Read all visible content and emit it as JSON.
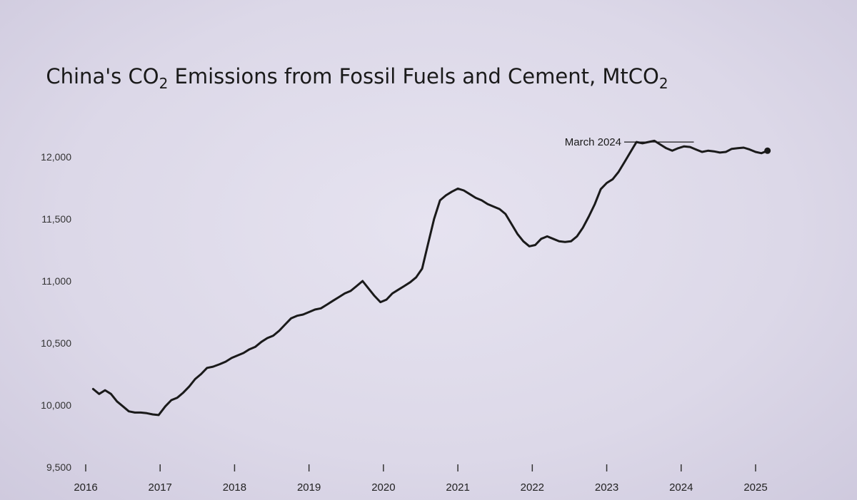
{
  "chart_data": {
    "type": "line",
    "title_parts": [
      {
        "text": "China's CO",
        "sub": false
      },
      {
        "text": "2",
        "sub": true
      },
      {
        "text": " Emissions from Fossil Fuels and Cement, MtCO",
        "sub": false
      },
      {
        "text": "2",
        "sub": true
      }
    ],
    "xlabel": "",
    "ylabel": "",
    "xlim": [
      2016,
      2025.3
    ],
    "ylim": [
      9500,
      12300
    ],
    "y_ticks": [
      9500,
      10000,
      10500,
      11000,
      11500,
      12000
    ],
    "y_tick_labels": [
      "9,500",
      "10,000",
      "10,500",
      "11,000",
      "11,500",
      "12,000"
    ],
    "x_ticks": [
      2016,
      2017,
      2018,
      2019,
      2020,
      2021,
      2022,
      2023,
      2024,
      2025
    ],
    "x_tick_labels": [
      "2016",
      "2017",
      "2018",
      "2019",
      "2020",
      "2021",
      "2022",
      "2023",
      "2024",
      "2025"
    ],
    "grid": false,
    "line_color": "#1a1a1a",
    "annotation": {
      "text": "March 2024",
      "x": 2024.17,
      "y": 12120
    },
    "series": [
      {
        "x": [
          2016.1,
          2016.18,
          2016.26,
          2016.34,
          2016.42,
          2016.5,
          2016.58,
          2016.66,
          2016.74,
          2016.82,
          2016.9,
          2016.98,
          2017.07,
          2017.15,
          2017.23,
          2017.31,
          2017.39,
          2017.47,
          2017.55,
          2017.63,
          2017.71,
          2017.8,
          2017.88,
          2017.96,
          2018.04,
          2018.12,
          2018.2,
          2018.28,
          2018.36,
          2018.44,
          2018.52,
          2018.6,
          2018.68,
          2018.76,
          2018.84,
          2018.92,
          2019.0,
          2019.08,
          2019.16,
          2019.24,
          2019.32,
          2019.4,
          2019.48,
          2019.56,
          2019.64,
          2019.72,
          2019.8,
          2019.88,
          2019.96,
          2020.04,
          2020.12,
          2020.2,
          2020.28,
          2020.36,
          2020.44,
          2020.52,
          2020.6,
          2020.68,
          2020.76,
          2020.84,
          2020.92,
          2021.0,
          2021.08,
          2021.16,
          2021.24,
          2021.32,
          2021.4,
          2021.48,
          2021.56,
          2021.64,
          2021.72,
          2021.8,
          2021.88,
          2021.96,
          2022.04,
          2022.12,
          2022.2,
          2022.28,
          2022.36,
          2022.44,
          2022.52,
          2022.6,
          2022.68,
          2022.76,
          2022.84,
          2022.92,
          2023.0,
          2023.08,
          2023.16,
          2023.24,
          2023.32,
          2023.4,
          2023.48,
          2023.56,
          2023.64,
          2023.72,
          2023.8,
          2023.88,
          2023.96,
          2024.04,
          2024.12,
          2024.2,
          2024.28,
          2024.36,
          2024.44,
          2024.52,
          2024.6,
          2024.68,
          2024.76,
          2024.84,
          2024.92,
          2025.0,
          2025.08,
          2025.16
        ],
        "y": [
          10130,
          10090,
          10120,
          10090,
          10030,
          9990,
          9950,
          9940,
          9940,
          9935,
          9925,
          9920,
          9990,
          10040,
          10060,
          10100,
          10150,
          10210,
          10250,
          10300,
          10310,
          10330,
          10350,
          10380,
          10400,
          10420,
          10450,
          10470,
          10510,
          10540,
          10560,
          10600,
          10650,
          10700,
          10720,
          10730,
          10750,
          10770,
          10780,
          10810,
          10840,
          10870,
          10900,
          10920,
          10960,
          11000,
          10940,
          10880,
          10830,
          10850,
          10900,
          10930,
          10960,
          10990,
          11030,
          11100,
          11300,
          11500,
          11650,
          11690,
          11720,
          11745,
          11730,
          11700,
          11670,
          11650,
          11620,
          11600,
          11580,
          11540,
          11460,
          11380,
          11320,
          11280,
          11290,
          11340,
          11360,
          11340,
          11320,
          11315,
          11320,
          11360,
          11430,
          11520,
          11620,
          11740,
          11790,
          11820,
          11880,
          11960,
          12040,
          12120,
          12110,
          12120,
          12130,
          12100,
          12070,
          12050,
          12070,
          12085,
          12080,
          12060,
          12040,
          12050,
          12045,
          12035,
          12040,
          12065,
          12070,
          12075,
          12060,
          12040,
          12030,
          12050
        ]
      }
    ]
  }
}
